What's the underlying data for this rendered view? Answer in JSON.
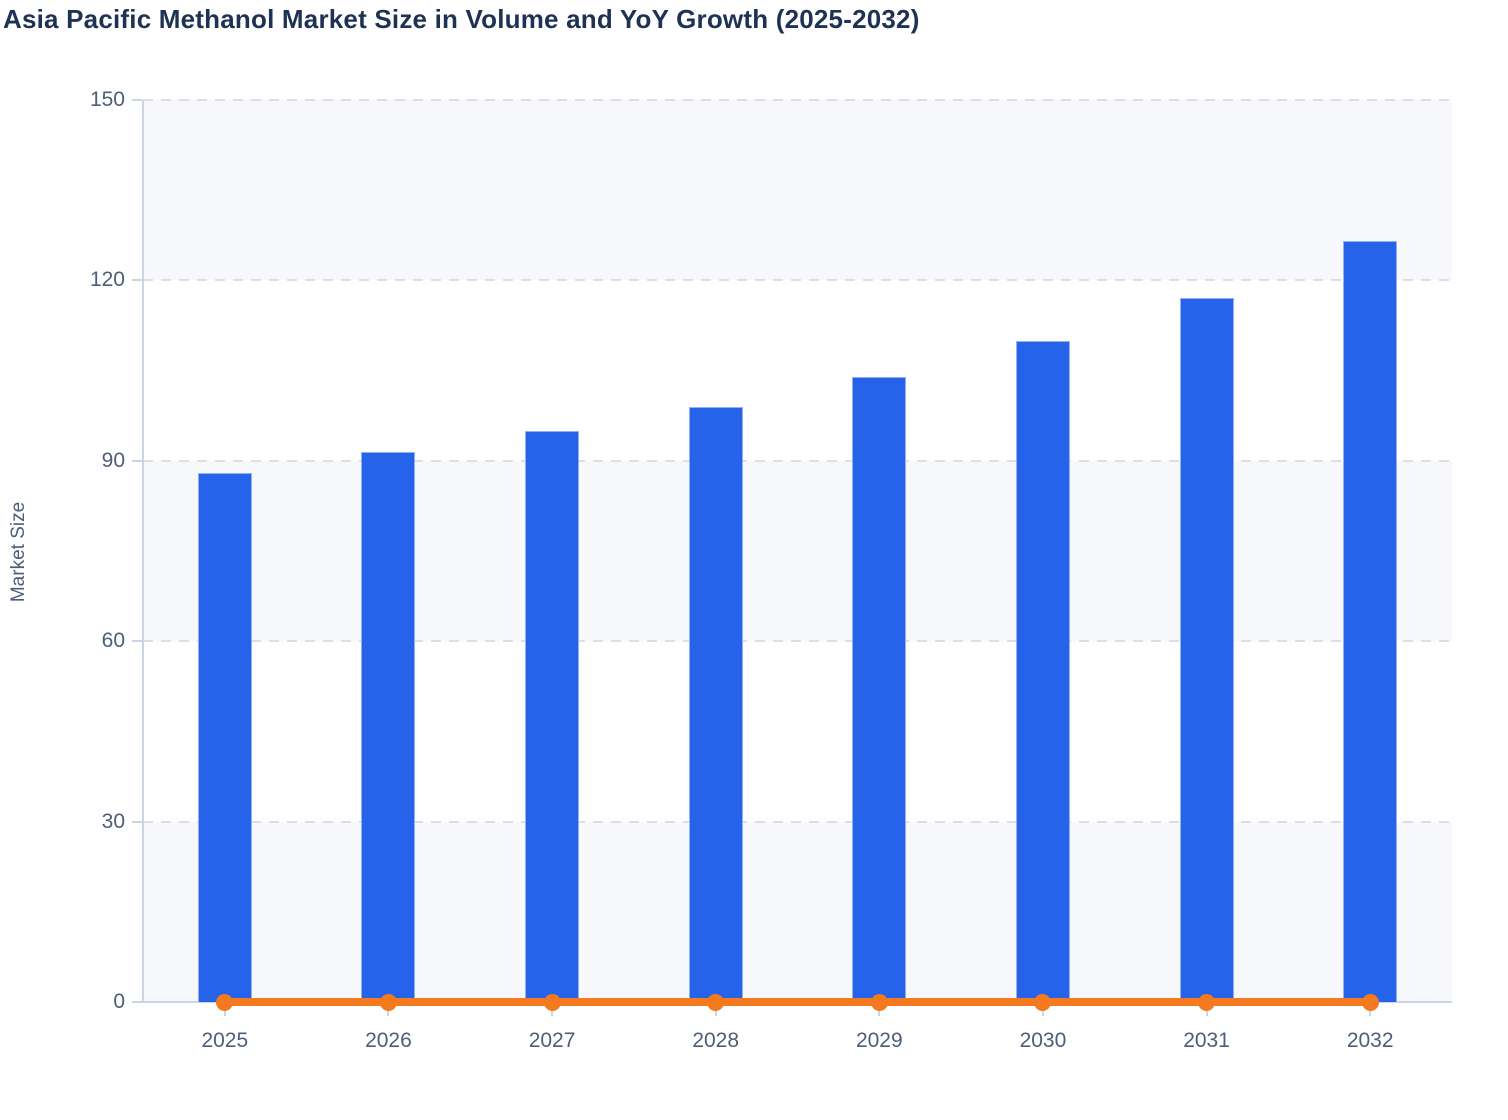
{
  "chart_data": {
    "type": "bar",
    "title": "Asia Pacific Methanol Market Size in Volume and YoY Growth (2025-2032)",
    "categories": [
      "2025",
      "2026",
      "2027",
      "2028",
      "2029",
      "2030",
      "2031",
      "2032"
    ],
    "series": [
      {
        "name": "Market Size",
        "type": "bar",
        "values": [
          88,
          91.5,
          95,
          99,
          104,
          110,
          117,
          126.5
        ]
      },
      {
        "name": "YoY Growth",
        "type": "line",
        "values": [
          0,
          0,
          0,
          0,
          0,
          0,
          0,
          0
        ]
      }
    ],
    "xlabel": "",
    "ylabel": "Market Size",
    "ylim": [
      0,
      150
    ],
    "yticks": [
      0,
      30,
      60,
      90,
      120,
      150
    ],
    "grid": "horizontal-dashed",
    "plot_background": "alternating-horizontal-bands",
    "legend_position": "none",
    "colors": {
      "bar": "#2563eb",
      "bar_border": "#96aff0",
      "line": "#f5791f",
      "title_text": "#1e3354",
      "axis_text": "#4d5e78",
      "axis_line": "#ccd3e6",
      "gridline": "#dcdee3",
      "band": "#f7f8fb",
      "background": "#ffffff"
    }
  }
}
